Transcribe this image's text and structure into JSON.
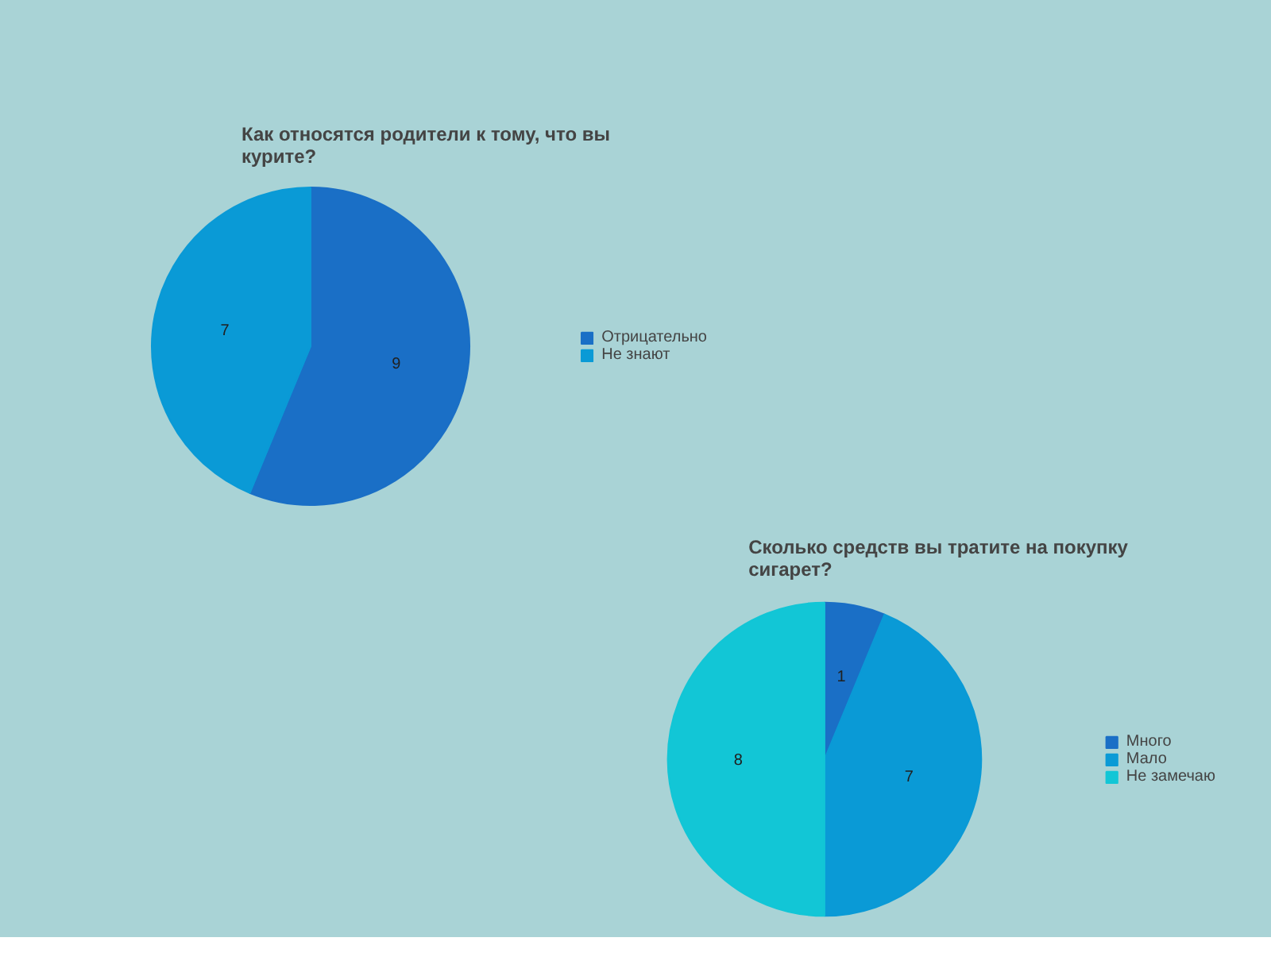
{
  "chart_data": [
    {
      "type": "pie",
      "title": "Как относятся родители к тому, что вы курите?",
      "categories": [
        "Отрицательно",
        "Не знают"
      ],
      "values": [
        9,
        7
      ],
      "colors": [
        "#1a6fc6",
        "#0a9ad6"
      ],
      "data_labels": true,
      "legend": "right"
    },
    {
      "type": "pie",
      "title": "Сколько средств вы тратите на покупку сигарет?",
      "categories": [
        "Много",
        "Мало",
        "Не замечаю"
      ],
      "values": [
        1,
        7,
        8
      ],
      "colors": [
        "#1a6fc6",
        "#0a9ad6",
        "#12c6d6"
      ],
      "data_labels": true,
      "legend": "right"
    }
  ]
}
